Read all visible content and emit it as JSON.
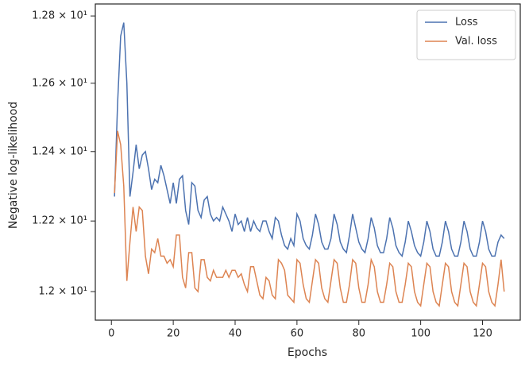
{
  "chart_data": {
    "type": "line",
    "xlabel": "Epochs",
    "ylabel": "Negative log-likelihood",
    "x": [
      1,
      2,
      3,
      4,
      5,
      6,
      7,
      8,
      9,
      10,
      11,
      12,
      13,
      14,
      15,
      16,
      17,
      18,
      19,
      20,
      21,
      22,
      23,
      24,
      25,
      26,
      27,
      28,
      29,
      30,
      31,
      32,
      33,
      34,
      35,
      36,
      37,
      38,
      39,
      40,
      41,
      42,
      43,
      44,
      45,
      46,
      47,
      48,
      49,
      50,
      51,
      52,
      53,
      54,
      55,
      56,
      57,
      58,
      59,
      60,
      61,
      62,
      63,
      64,
      65,
      66,
      67,
      68,
      69,
      70,
      71,
      72,
      73,
      74,
      75,
      76,
      77,
      78,
      79,
      80,
      81,
      82,
      83,
      84,
      85,
      86,
      87,
      88,
      89,
      90,
      91,
      92,
      93,
      94,
      95,
      96,
      97,
      98,
      99,
      100,
      101,
      102,
      103,
      104,
      105,
      106,
      107,
      108,
      109,
      110,
      111,
      112,
      113,
      114,
      115,
      116,
      117,
      118,
      119,
      120,
      121,
      122,
      123,
      124,
      125,
      126,
      127
    ],
    "series": [
      {
        "name": "Loss",
        "color": "#4c72b0",
        "values": [
          12.27,
          12.54,
          12.74,
          12.78,
          12.6,
          12.27,
          12.34,
          12.42,
          12.35,
          12.39,
          12.4,
          12.35,
          12.29,
          12.32,
          12.31,
          12.36,
          12.33,
          12.29,
          12.25,
          12.31,
          12.25,
          12.32,
          12.33,
          12.23,
          12.19,
          12.31,
          12.3,
          12.23,
          12.21,
          12.26,
          12.27,
          12.22,
          12.2,
          12.21,
          12.2,
          12.24,
          12.22,
          12.2,
          12.17,
          12.22,
          12.19,
          12.2,
          12.17,
          12.21,
          12.17,
          12.2,
          12.18,
          12.17,
          12.2,
          12.2,
          12.17,
          12.15,
          12.21,
          12.2,
          12.16,
          12.13,
          12.12,
          12.15,
          12.13,
          12.22,
          12.2,
          12.15,
          12.13,
          12.12,
          12.16,
          12.22,
          12.19,
          12.14,
          12.12,
          12.12,
          12.15,
          12.22,
          12.19,
          12.14,
          12.12,
          12.11,
          12.16,
          12.22,
          12.18,
          12.14,
          12.12,
          12.11,
          12.15,
          12.21,
          12.18,
          12.13,
          12.11,
          12.11,
          12.15,
          12.21,
          12.18,
          12.13,
          12.11,
          12.1,
          12.14,
          12.2,
          12.17,
          12.13,
          12.11,
          12.1,
          12.14,
          12.2,
          12.17,
          12.12,
          12.1,
          12.1,
          12.14,
          12.2,
          12.17,
          12.12,
          12.1,
          12.1,
          12.14,
          12.2,
          12.17,
          12.12,
          12.1,
          12.1,
          12.14,
          12.2,
          12.17,
          12.12,
          12.1,
          12.1,
          12.14,
          12.16,
          12.15
        ]
      },
      {
        "name": "Val. loss",
        "color": "#dd8452",
        "values": [
          12.28,
          12.46,
          12.42,
          12.3,
          12.03,
          12.14,
          12.24,
          12.17,
          12.24,
          12.23,
          12.1,
          12.05,
          12.12,
          12.11,
          12.15,
          12.1,
          12.1,
          12.08,
          12.09,
          12.07,
          12.16,
          12.16,
          12.04,
          12.01,
          12.11,
          12.11,
          12.01,
          12.0,
          12.09,
          12.09,
          12.04,
          12.03,
          12.06,
          12.04,
          12.04,
          12.04,
          12.06,
          12.04,
          12.06,
          12.06,
          12.04,
          12.05,
          12.02,
          12.0,
          12.07,
          12.07,
          12.03,
          11.99,
          11.98,
          12.04,
          12.03,
          11.99,
          11.98,
          12.09,
          12.08,
          12.06,
          11.99,
          11.98,
          11.97,
          12.09,
          12.08,
          12.02,
          11.98,
          11.97,
          12.03,
          12.09,
          12.08,
          12.01,
          11.98,
          11.97,
          12.03,
          12.09,
          12.08,
          12.01,
          11.97,
          11.97,
          12.02,
          12.09,
          12.08,
          12.01,
          11.97,
          11.97,
          12.02,
          12.09,
          12.07,
          12.0,
          11.97,
          11.97,
          12.02,
          12.08,
          12.07,
          12.0,
          11.97,
          11.97,
          12.02,
          12.08,
          12.07,
          12.0,
          11.97,
          11.96,
          12.02,
          12.08,
          12.07,
          12.0,
          11.97,
          11.96,
          12.02,
          12.08,
          12.07,
          12.0,
          11.97,
          11.96,
          12.02,
          12.08,
          12.07,
          12.0,
          11.97,
          11.96,
          12.02,
          12.08,
          12.07,
          12.0,
          11.97,
          11.96,
          12.02,
          12.09,
          12.0
        ]
      }
    ],
    "xlim": [
      -5.2,
      132.2
    ],
    "xticks": [
      0,
      20,
      40,
      60,
      80,
      100,
      120
    ],
    "ylim": [
      11.92,
      12.836
    ],
    "ylog": true,
    "yticks": [
      {
        "value": 12.0,
        "label": "1.2 × 10¹"
      },
      {
        "value": 12.2,
        "label": "1.22 × 10¹"
      },
      {
        "value": 12.4,
        "label": "1.24 × 10¹"
      },
      {
        "value": 12.6,
        "label": "1.26 × 10¹"
      },
      {
        "value": 12.8,
        "label": "1.28 × 10¹"
      }
    ],
    "grid": false,
    "legend": "upper right"
  }
}
